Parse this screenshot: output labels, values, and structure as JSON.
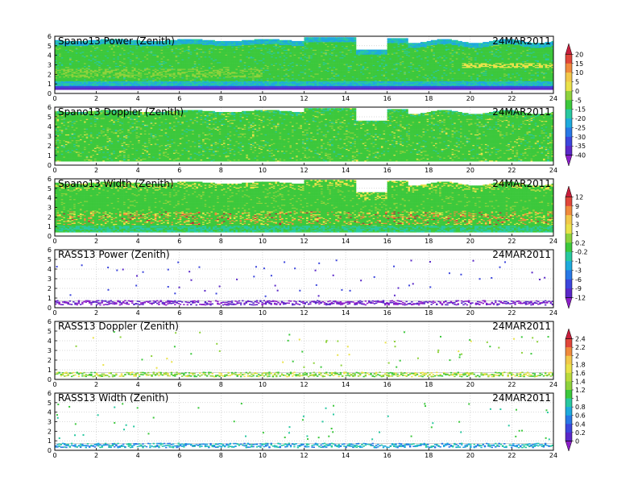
{
  "chart_data": {
    "type": "heatmap",
    "date": "24MAR2011",
    "x_range": [
      0,
      24
    ],
    "x_ticks": [
      0,
      2,
      4,
      6,
      8,
      10,
      12,
      14,
      16,
      18,
      20,
      22,
      24
    ],
    "y_range": [
      0,
      6
    ],
    "y_ticks": [
      0,
      1,
      2,
      3,
      4,
      5,
      6
    ],
    "grid": true,
    "panels": [
      {
        "title": "Spano13 Power (Zenith)",
        "date": "24MAR2011",
        "kind": "profiler-power",
        "colorbar": 0
      },
      {
        "title": "Spano13 Doppler (Zenith)",
        "date": "24MAR2011",
        "kind": "profiler-doppler",
        "colorbar": 0
      },
      {
        "title": "Spano13 Width (Zenith)",
        "date": "24MAR2011",
        "kind": "profiler-width",
        "colorbar": 1
      },
      {
        "title": "RASS13 Power (Zenith)",
        "date": "24MAR2011",
        "kind": "rass-power",
        "colorbar": 1
      },
      {
        "title": "RASS13 Doppler (Zenith)",
        "date": "24MAR2011",
        "kind": "rass-doppler",
        "colorbar": 2
      },
      {
        "title": "RASS13 Width (Zenith)",
        "date": "24MAR2011",
        "kind": "rass-width",
        "colorbar": 2
      }
    ],
    "colorbars": [
      {
        "labels": [
          "20",
          "15",
          "10",
          "5",
          "0",
          "-5",
          "-15",
          "-20",
          "-25",
          "-30",
          "-35",
          "-40"
        ],
        "colors": [
          "#c81e3c",
          "#e0463a",
          "#f08a3c",
          "#f2c84a",
          "#eae24a",
          "#8ed23c",
          "#3cc83c",
          "#28c8a0",
          "#1eaadc",
          "#2878e6",
          "#3c46dc",
          "#5a28c8",
          "#8c1ec8"
        ]
      },
      {
        "labels": [
          "12",
          "9",
          "6",
          "3",
          "1",
          "0.2",
          "-0.2",
          "-1",
          "-3",
          "-6",
          "-9",
          "-12"
        ],
        "colors": [
          "#c81e3c",
          "#e0463a",
          "#f08a3c",
          "#f2c84a",
          "#eae24a",
          "#8ed23c",
          "#3cc83c",
          "#28c8a0",
          "#1eaadc",
          "#2878e6",
          "#3c46dc",
          "#5a28c8",
          "#8c1ec8"
        ]
      },
      {
        "labels": [
          "2.4",
          "2.2",
          "2",
          "1.8",
          "1.6",
          "1.4",
          "1.2",
          "1",
          "0.8",
          "0.6",
          "0.4",
          "0.2",
          "0"
        ],
        "colors": [
          "#c81e3c",
          "#e0463a",
          "#f08a3c",
          "#f2c84a",
          "#eae24a",
          "#bada3c",
          "#8ed23c",
          "#3cc83c",
          "#28c8a0",
          "#1eaadc",
          "#2878e6",
          "#3c46dc",
          "#5a28c8",
          "#8c1ec8"
        ]
      }
    ]
  }
}
